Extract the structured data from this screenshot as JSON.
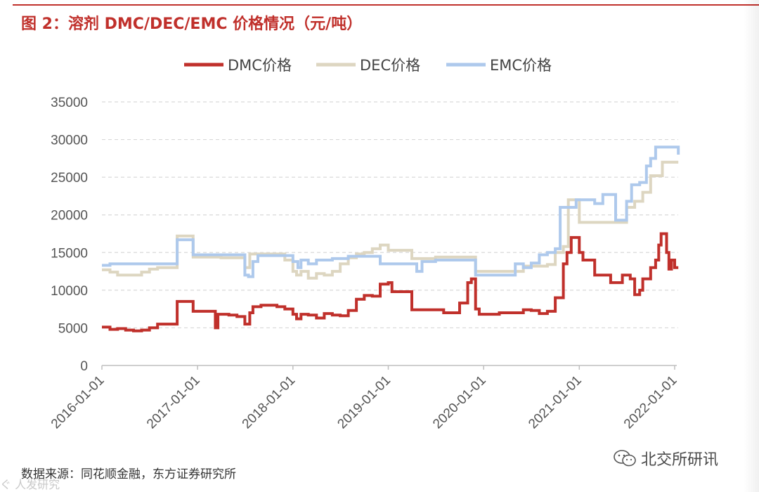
{
  "title": "图 2：溶剂 DMC/DEC/EMC 价格情况（元/吨）",
  "source": "数据来源：同花顺金融，东方证券研究所",
  "watermark_left": "ぐ 人发研究",
  "watermark_right": "北交所研讯",
  "watermark_icon": "wechat-icon",
  "chart_data": {
    "type": "line",
    "title": "",
    "xlabel": "",
    "ylabel": "",
    "ylim": [
      0,
      35000
    ],
    "yticks": [
      "0",
      "5000",
      "10000",
      "15000",
      "20000",
      "25000",
      "30000",
      "35000"
    ],
    "xticks": [
      "2016-01-01",
      "2017-01-01",
      "2018-01-01",
      "2019-01-01",
      "2020-01-01",
      "2021-01-01",
      "2022-01-01"
    ],
    "xlim": [
      "2016-01-01",
      "2022-01-15"
    ],
    "grid": "horizontal dashed",
    "legend": "top",
    "series": [
      {
        "name": "DMC价格",
        "color": "#c0302b",
        "points": [
          [
            "2016-01-01",
            5100
          ],
          [
            "2016-02-01",
            4800
          ],
          [
            "2016-03-01",
            4900
          ],
          [
            "2016-04-01",
            4700
          ],
          [
            "2016-05-01",
            4600
          ],
          [
            "2016-06-01",
            4700
          ],
          [
            "2016-07-01",
            5000
          ],
          [
            "2016-08-01",
            5500
          ],
          [
            "2016-09-01",
            5500
          ],
          [
            "2016-10-01",
            5500
          ],
          [
            "2016-10-15",
            8500
          ],
          [
            "2016-12-01",
            8500
          ],
          [
            "2016-12-15",
            7200
          ],
          [
            "2017-02-01",
            7200
          ],
          [
            "2017-03-01",
            7200
          ],
          [
            "2017-03-10",
            5000
          ],
          [
            "2017-03-20",
            6800
          ],
          [
            "2017-05-01",
            6700
          ],
          [
            "2017-06-01",
            6500
          ],
          [
            "2017-07-01",
            5500
          ],
          [
            "2017-07-20",
            7000
          ],
          [
            "2017-08-01",
            7800
          ],
          [
            "2017-09-01",
            8000
          ],
          [
            "2017-10-01",
            8000
          ],
          [
            "2017-11-01",
            7800
          ],
          [
            "2017-12-01",
            7500
          ],
          [
            "2018-01-01",
            6800
          ],
          [
            "2018-01-15",
            6200
          ],
          [
            "2018-02-01",
            6800
          ],
          [
            "2018-03-01",
            6700
          ],
          [
            "2018-04-01",
            6300
          ],
          [
            "2018-05-01",
            6900
          ],
          [
            "2018-06-01",
            6700
          ],
          [
            "2018-07-01",
            6600
          ],
          [
            "2018-08-01",
            7300
          ],
          [
            "2018-09-01",
            8800
          ],
          [
            "2018-10-01",
            9300
          ],
          [
            "2018-11-01",
            9200
          ],
          [
            "2018-12-01",
            10800
          ],
          [
            "2019-01-01",
            11000
          ],
          [
            "2019-01-15",
            9800
          ],
          [
            "2019-02-01",
            9800
          ],
          [
            "2019-03-01",
            9800
          ],
          [
            "2019-04-01",
            7400
          ],
          [
            "2019-06-01",
            7400
          ],
          [
            "2019-07-01",
            7400
          ],
          [
            "2019-08-01",
            7000
          ],
          [
            "2019-09-01",
            7000
          ],
          [
            "2019-10-01",
            8300
          ],
          [
            "2019-11-01",
            11000
          ],
          [
            "2019-11-15",
            11500
          ],
          [
            "2019-12-01",
            7500
          ],
          [
            "2019-12-15",
            6800
          ],
          [
            "2020-02-01",
            6800
          ],
          [
            "2020-03-01",
            7000
          ],
          [
            "2020-05-01",
            7000
          ],
          [
            "2020-06-01",
            7400
          ],
          [
            "2020-07-01",
            7300
          ],
          [
            "2020-08-01",
            6900
          ],
          [
            "2020-09-01",
            7200
          ],
          [
            "2020-10-01",
            9000
          ],
          [
            "2020-11-01",
            13500
          ],
          [
            "2020-11-15",
            15000
          ],
          [
            "2020-12-01",
            17000
          ],
          [
            "2020-12-20",
            17000
          ],
          [
            "2021-01-01",
            15000
          ],
          [
            "2021-01-15",
            14000
          ],
          [
            "2021-02-01",
            14000
          ],
          [
            "2021-03-01",
            12000
          ],
          [
            "2021-04-01",
            12000
          ],
          [
            "2021-05-01",
            11000
          ],
          [
            "2021-06-01",
            11000
          ],
          [
            "2021-06-15",
            12000
          ],
          [
            "2021-07-15",
            11500
          ],
          [
            "2021-08-01",
            9400
          ],
          [
            "2021-08-20",
            10000
          ],
          [
            "2021-09-01",
            11500
          ],
          [
            "2021-10-01",
            13000
          ],
          [
            "2021-10-20",
            14000
          ],
          [
            "2021-11-01",
            16000
          ],
          [
            "2021-11-10",
            17500
          ],
          [
            "2021-12-01",
            15000
          ],
          [
            "2021-12-10",
            12800
          ],
          [
            "2021-12-20",
            14000
          ],
          [
            "2022-01-01",
            13000
          ],
          [
            "2022-01-15",
            13000
          ]
        ]
      },
      {
        "name": "DEC价格",
        "color": "#ddd6c1",
        "points": [
          [
            "2016-01-01",
            12700
          ],
          [
            "2016-02-01",
            12400
          ],
          [
            "2016-03-01",
            12000
          ],
          [
            "2016-04-01",
            12000
          ],
          [
            "2016-05-01",
            12000
          ],
          [
            "2016-06-01",
            12400
          ],
          [
            "2016-07-01",
            12800
          ],
          [
            "2016-08-01",
            13000
          ],
          [
            "2016-09-01",
            13000
          ],
          [
            "2016-10-01",
            13000
          ],
          [
            "2016-10-15",
            17200
          ],
          [
            "2016-12-01",
            17200
          ],
          [
            "2016-12-15",
            14400
          ],
          [
            "2017-02-01",
            14400
          ],
          [
            "2017-04-01",
            14300
          ],
          [
            "2017-06-01",
            14300
          ],
          [
            "2017-07-01",
            13000
          ],
          [
            "2017-07-20",
            14800
          ],
          [
            "2017-09-01",
            14800
          ],
          [
            "2017-11-01",
            14800
          ],
          [
            "2017-12-01",
            14000
          ],
          [
            "2018-01-01",
            12500
          ],
          [
            "2018-01-15",
            12000
          ],
          [
            "2018-02-01",
            12500
          ],
          [
            "2018-03-01",
            11600
          ],
          [
            "2018-04-01",
            12200
          ],
          [
            "2018-05-01",
            12000
          ],
          [
            "2018-06-01",
            12500
          ],
          [
            "2018-07-01",
            13500
          ],
          [
            "2018-08-01",
            14300
          ],
          [
            "2018-09-01",
            14800
          ],
          [
            "2018-10-01",
            15000
          ],
          [
            "2018-11-01",
            15500
          ],
          [
            "2018-12-01",
            16000
          ],
          [
            "2019-01-01",
            15300
          ],
          [
            "2019-02-01",
            15300
          ],
          [
            "2019-03-01",
            15300
          ],
          [
            "2019-04-01",
            14200
          ],
          [
            "2019-06-01",
            14200
          ],
          [
            "2019-07-01",
            14400
          ],
          [
            "2019-09-01",
            14400
          ],
          [
            "2019-11-01",
            14400
          ],
          [
            "2019-12-01",
            12500
          ],
          [
            "2020-02-01",
            12500
          ],
          [
            "2020-04-01",
            12500
          ],
          [
            "2020-06-01",
            13200
          ],
          [
            "2020-07-01",
            13200
          ],
          [
            "2020-09-01",
            13400
          ],
          [
            "2020-10-01",
            15000
          ],
          [
            "2020-11-01",
            15800
          ],
          [
            "2020-11-20",
            22000
          ],
          [
            "2020-12-20",
            22000
          ],
          [
            "2021-01-01",
            19000
          ],
          [
            "2021-02-01",
            19000
          ],
          [
            "2021-04-01",
            19000
          ],
          [
            "2021-06-01",
            19000
          ],
          [
            "2021-07-01",
            21000
          ],
          [
            "2021-08-01",
            21800
          ],
          [
            "2021-09-01",
            23000
          ],
          [
            "2021-10-01",
            25200
          ],
          [
            "2021-11-01",
            25200
          ],
          [
            "2021-11-15",
            27000
          ],
          [
            "2021-12-15",
            27000
          ],
          [
            "2022-01-15",
            27000
          ]
        ]
      },
      {
        "name": "EMC价格",
        "color": "#aec9ec",
        "points": [
          [
            "2016-01-01",
            13300
          ],
          [
            "2016-02-01",
            13500
          ],
          [
            "2016-04-01",
            13500
          ],
          [
            "2016-06-01",
            13500
          ],
          [
            "2016-08-01",
            13500
          ],
          [
            "2016-10-01",
            13500
          ],
          [
            "2016-10-15",
            16700
          ],
          [
            "2016-12-01",
            16700
          ],
          [
            "2016-12-15",
            14700
          ],
          [
            "2017-02-01",
            14700
          ],
          [
            "2017-04-01",
            14700
          ],
          [
            "2017-06-01",
            14700
          ],
          [
            "2017-07-01",
            12000
          ],
          [
            "2017-07-15",
            11800
          ],
          [
            "2017-08-01",
            13800
          ],
          [
            "2017-08-20",
            14600
          ],
          [
            "2017-10-01",
            14600
          ],
          [
            "2017-12-01",
            14600
          ],
          [
            "2018-01-01",
            13800
          ],
          [
            "2018-01-20",
            13000
          ],
          [
            "2018-02-01",
            14000
          ],
          [
            "2018-03-01",
            13500
          ],
          [
            "2018-04-01",
            14000
          ],
          [
            "2018-06-01",
            14200
          ],
          [
            "2018-08-01",
            14500
          ],
          [
            "2018-10-01",
            14500
          ],
          [
            "2018-11-01",
            14500
          ],
          [
            "2018-12-01",
            13500
          ],
          [
            "2019-02-01",
            13500
          ],
          [
            "2019-04-01",
            13500
          ],
          [
            "2019-04-20",
            12500
          ],
          [
            "2019-05-10",
            13800
          ],
          [
            "2019-07-01",
            14000
          ],
          [
            "2019-09-01",
            14000
          ],
          [
            "2019-11-01",
            14000
          ],
          [
            "2019-12-01",
            12000
          ],
          [
            "2020-02-01",
            12000
          ],
          [
            "2020-04-01",
            12000
          ],
          [
            "2020-05-01",
            13500
          ],
          [
            "2020-06-01",
            13000
          ],
          [
            "2020-07-01",
            13600
          ],
          [
            "2020-08-01",
            14700
          ],
          [
            "2020-09-01",
            15000
          ],
          [
            "2020-10-01",
            15500
          ],
          [
            "2020-10-20",
            21000
          ],
          [
            "2020-12-01",
            21000
          ],
          [
            "2020-12-20",
            22000
          ],
          [
            "2021-02-01",
            22000
          ],
          [
            "2021-03-01",
            21500
          ],
          [
            "2021-04-01",
            22700
          ],
          [
            "2021-05-01",
            22700
          ],
          [
            "2021-05-20",
            19300
          ],
          [
            "2021-06-20",
            19300
          ],
          [
            "2021-07-01",
            21800
          ],
          [
            "2021-07-20",
            24000
          ],
          [
            "2021-08-20",
            24300
          ],
          [
            "2021-09-15",
            26500
          ],
          [
            "2021-10-01",
            27500
          ],
          [
            "2021-10-20",
            29000
          ],
          [
            "2021-12-01",
            29000
          ],
          [
            "2022-01-01",
            29000
          ],
          [
            "2022-01-15",
            28000
          ]
        ]
      }
    ]
  }
}
